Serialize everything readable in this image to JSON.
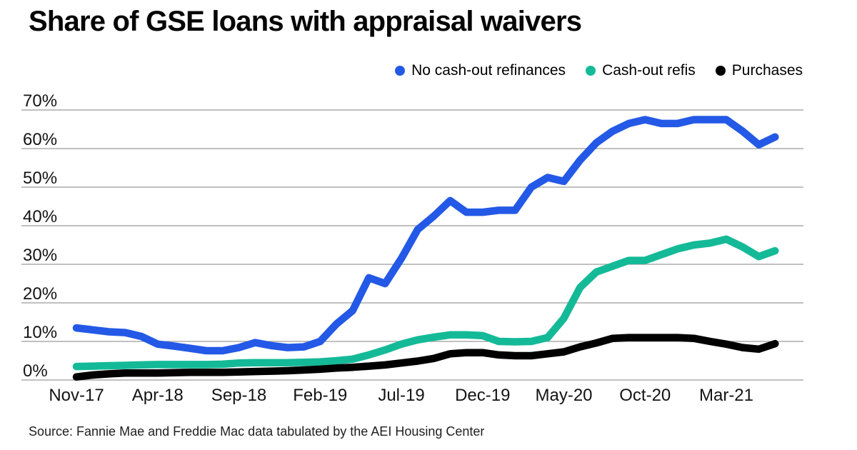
{
  "title": "Share of GSE loans with appraisal waivers",
  "source": "Source: Fannie Mae and Freddie Mac data tabulated by the AEI Housing Center",
  "colors": {
    "no_cash_out": "#2359e6",
    "cash_out": "#14ba97",
    "purchases": "#000000",
    "gridline": "#9b9b9b"
  },
  "chart_data": {
    "type": "line",
    "title": "Share of GSE loans with appraisal waivers",
    "xlabel": "",
    "ylabel": "",
    "ylim": [
      0,
      70
    ],
    "grid": "horizontal",
    "legend_position": "top-right",
    "y_ticks": [
      "70%",
      "60%",
      "50%",
      "40%",
      "30%",
      "20%",
      "10%",
      "0%"
    ],
    "x": [
      "Nov-17",
      "Dec-17",
      "Jan-18",
      "Feb-18",
      "Mar-18",
      "Apr-18",
      "May-18",
      "Jun-18",
      "Jul-18",
      "Aug-18",
      "Sep-18",
      "Oct-18",
      "Nov-18",
      "Dec-18",
      "Jan-19",
      "Feb-19",
      "Mar-19",
      "Apr-19",
      "May-19",
      "Jun-19",
      "Jul-19",
      "Aug-19",
      "Sep-19",
      "Oct-19",
      "Nov-19",
      "Dec-19",
      "Jan-20",
      "Feb-20",
      "Mar-20",
      "Apr-20",
      "May-20",
      "Jun-20",
      "Jul-20",
      "Aug-20",
      "Sep-20",
      "Oct-20",
      "Nov-20",
      "Dec-20",
      "Jan-21",
      "Feb-21",
      "Mar-21",
      "Apr-21",
      "May-21",
      "Jun-21"
    ],
    "x_tick_labels": [
      {
        "label": "Nov-17",
        "index": 0
      },
      {
        "label": "Apr-18",
        "index": 5
      },
      {
        "label": "Sep-18",
        "index": 10
      },
      {
        "label": "Feb-19",
        "index": 15
      },
      {
        "label": "Jul-19",
        "index": 20
      },
      {
        "label": "Dec-19",
        "index": 25
      },
      {
        "label": "May-20",
        "index": 30
      },
      {
        "label": "Oct-20",
        "index": 35
      },
      {
        "label": "Mar-21",
        "index": 40
      }
    ],
    "series": [
      {
        "name": "No cash-out refinances",
        "color": "#2359e6",
        "values": [
          13.5,
          13,
          12.5,
          12.3,
          11.3,
          9.3,
          8.8,
          8.2,
          7.6,
          7.6,
          8.4,
          9.7,
          8.9,
          8.4,
          8.6,
          10,
          14.5,
          18,
          26.5,
          25,
          31.5,
          39,
          42.5,
          46.5,
          43.5,
          43.5,
          44,
          44,
          50,
          52.5,
          51.5,
          57,
          61.5,
          64.5,
          66.5,
          67.5,
          66.5,
          66.5,
          67.5,
          67.5,
          67.5,
          64.5,
          61,
          63
        ]
      },
      {
        "name": "Cash-out refis",
        "color": "#14ba97",
        "values": [
          3.5,
          3.6,
          3.7,
          3.8,
          3.9,
          4.0,
          4.0,
          4.0,
          4.0,
          4.1,
          4.4,
          4.5,
          4.5,
          4.5,
          4.6,
          4.7,
          5.0,
          5.4,
          6.5,
          7.8,
          9.3,
          10.4,
          11.1,
          11.7,
          11.7,
          11.5,
          10.0,
          9.9,
          10.0,
          11.0,
          16.0,
          24.0,
          28.0,
          29.5,
          31.0,
          31.0,
          32.5,
          34.0,
          35.0,
          35.5,
          36.5,
          34.5,
          32.0,
          33.5
        ]
      },
      {
        "name": "Purchases",
        "color": "#000000",
        "values": [
          0.8,
          1.3,
          1.6,
          1.8,
          1.8,
          1.8,
          1.9,
          2.0,
          2.0,
          2.0,
          2.1,
          2.2,
          2.3,
          2.4,
          2.6,
          2.8,
          3.1,
          3.3,
          3.6,
          3.9,
          4.4,
          4.9,
          5.6,
          6.8,
          7.1,
          7.1,
          6.5,
          6.3,
          6.3,
          6.8,
          7.3,
          8.6,
          9.6,
          10.8,
          11.0,
          11.0,
          11.0,
          11.0,
          10.8,
          10.0,
          9.3,
          8.4,
          8.0,
          9.4
        ]
      }
    ]
  }
}
